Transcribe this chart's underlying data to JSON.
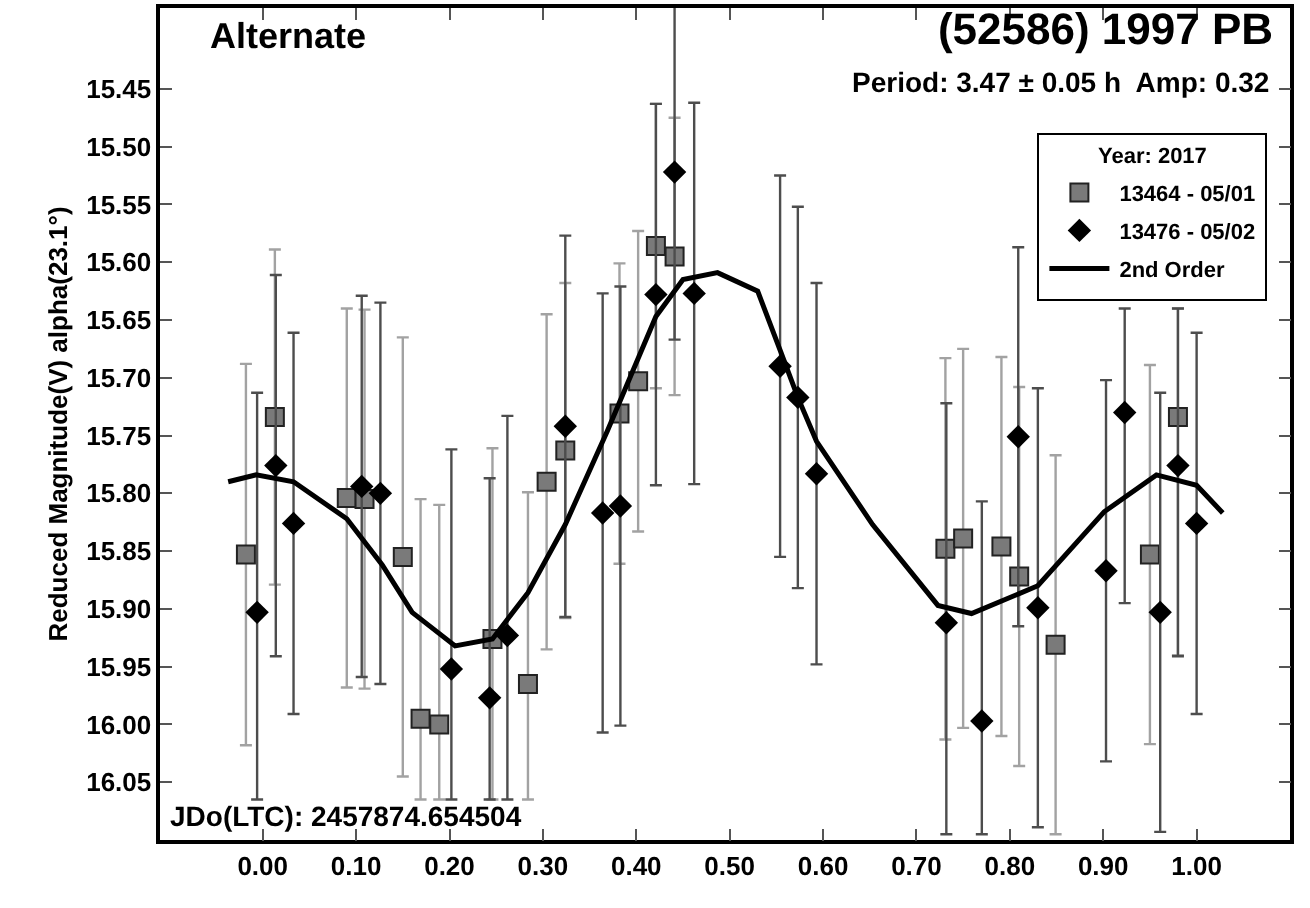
{
  "chart_data": {
    "type": "scatter",
    "title": "(52586) 1997 PB",
    "ylabel": "Reduced Magnitude(V) alpha(23.1°)",
    "annotations": [
      "Alternate",
      "Period: 3.47 ± 0.05 h  Amp: 0.32",
      "JDo(LTC): 2457874.654504"
    ],
    "legend_title": "Year: 2017",
    "legend": "top right",
    "xlim": [
      -0.11,
      1.1
    ],
    "xticks": [
      {
        "value": 0,
        "label": "0.00"
      },
      {
        "value": 0.1,
        "label": "0.10"
      },
      {
        "value": 0.2,
        "label": "0.20"
      },
      {
        "value": 0.3,
        "label": "0.30"
      },
      {
        "value": 0.4,
        "label": "0.40"
      },
      {
        "value": 0.5,
        "label": "0.50"
      },
      {
        "value": 0.6,
        "label": "0.60"
      },
      {
        "value": 0.7,
        "label": "0.70"
      },
      {
        "value": 0.8,
        "label": "0.80"
      },
      {
        "value": 0.9,
        "label": "0.90"
      },
      {
        "value": 1,
        "label": "1.00"
      }
    ],
    "ylim": [
      16.1,
      15.38
    ],
    "yticks": [
      15.45,
      {
        "value": 15.5,
        "label": "15.50"
      },
      15.55,
      {
        "value": 15.6,
        "label": "15.60"
      },
      15.65,
      {
        "value": 15.7,
        "label": "15.70"
      },
      15.75,
      {
        "value": 15.8,
        "label": "15.80"
      },
      15.85,
      {
        "value": 15.9,
        "label": "15.90"
      },
      15.95,
      {
        "value": 16.0,
        "label": "16.00"
      },
      16.05
    ],
    "series": [
      {
        "name": "13464 - 05/01",
        "marker": "square",
        "color": "#7a7a7a",
        "x": [
          -0.018,
          0.013,
          0.09,
          0.109,
          0.15,
          0.169,
          0.189,
          0.246,
          0.284,
          0.304,
          0.324,
          0.382,
          0.402,
          0.421,
          0.441,
          0.731,
          0.75,
          0.791,
          0.81,
          0.849,
          0.95,
          0.98
        ],
        "values": [
          15.853,
          15.734,
          15.804,
          15.805,
          15.855,
          15.995,
          16.0,
          15.926,
          15.965,
          15.79,
          15.763,
          15.731,
          15.703,
          15.586,
          15.595,
          15.848,
          15.839,
          15.846,
          15.872,
          15.931,
          15.853,
          15.734
        ],
        "errors": [
          0.165,
          0.145,
          0.164,
          0.164,
          0.19,
          [
            15.805,
            16.065
          ],
          [
            15.81,
            16.065
          ],
          [
            15.761,
            16.065
          ],
          [
            15.799,
            16.065
          ],
          0.145,
          0.145,
          0.13,
          0.13,
          0.123,
          0.12,
          0.165,
          0.164,
          0.164,
          0.164,
          0.164,
          0.164,
          [
            15.64,
            15.94
          ]
        ]
      },
      {
        "name": "13476 - 05/02",
        "marker": "diamond",
        "color": "#000000",
        "x": [
          -0.006,
          0.014,
          0.033,
          0.106,
          0.126,
          0.202,
          0.243,
          0.262,
          0.324,
          0.364,
          0.383,
          0.421,
          0.441,
          0.462,
          0.554,
          0.573,
          0.593,
          0.732,
          0.77,
          0.809,
          0.83,
          0.903,
          0.923,
          0.961,
          0.98,
          1.0
        ],
        "values": [
          15.903,
          15.776,
          15.826,
          15.794,
          15.8,
          15.952,
          15.977,
          15.923,
          15.742,
          15.817,
          15.811,
          15.628,
          15.522,
          15.627,
          15.69,
          15.717,
          15.783,
          15.912,
          15.997,
          15.751,
          15.899,
          15.867,
          15.73,
          15.903,
          15.776,
          15.826
        ],
        "errors": [
          [
            15.713,
            16.065
          ],
          0.165,
          0.165,
          0.165,
          0.165,
          [
            15.762,
            16.065
          ],
          [
            15.787,
            16.065
          ],
          [
            15.733,
            16.065
          ],
          0.165,
          0.19,
          0.19,
          0.165,
          0.145,
          0.165,
          0.165,
          0.165,
          0.165,
          [
            15.722,
            16.095
          ],
          [
            15.807,
            16.095
          ],
          0.164,
          0.19,
          0.165,
          [
            15.64,
            15.895
          ],
          0.19,
          [
            15.64,
            15.941
          ],
          0.165
        ]
      },
      {
        "name": "2nd Order",
        "type": "line",
        "marker": "none",
        "line_style": "solid",
        "color": "#000000",
        "x": [
          -0.037,
          -0.007,
          0.033,
          0.09,
          0.128,
          0.16,
          0.206,
          0.246,
          0.284,
          0.324,
          0.369,
          0.421,
          0.45,
          0.487,
          0.53,
          0.554,
          0.573,
          0.593,
          0.653,
          0.723,
          0.759,
          0.83,
          0.901,
          0.957,
          1.0,
          1.028
        ],
        "values": [
          15.79,
          15.784,
          15.79,
          15.822,
          15.862,
          15.903,
          15.932,
          15.926,
          15.886,
          15.827,
          15.746,
          15.647,
          15.615,
          15.609,
          15.625,
          15.676,
          15.717,
          15.755,
          15.827,
          15.897,
          15.904,
          15.88,
          15.816,
          15.784,
          15.793,
          15.817
        ]
      }
    ]
  }
}
